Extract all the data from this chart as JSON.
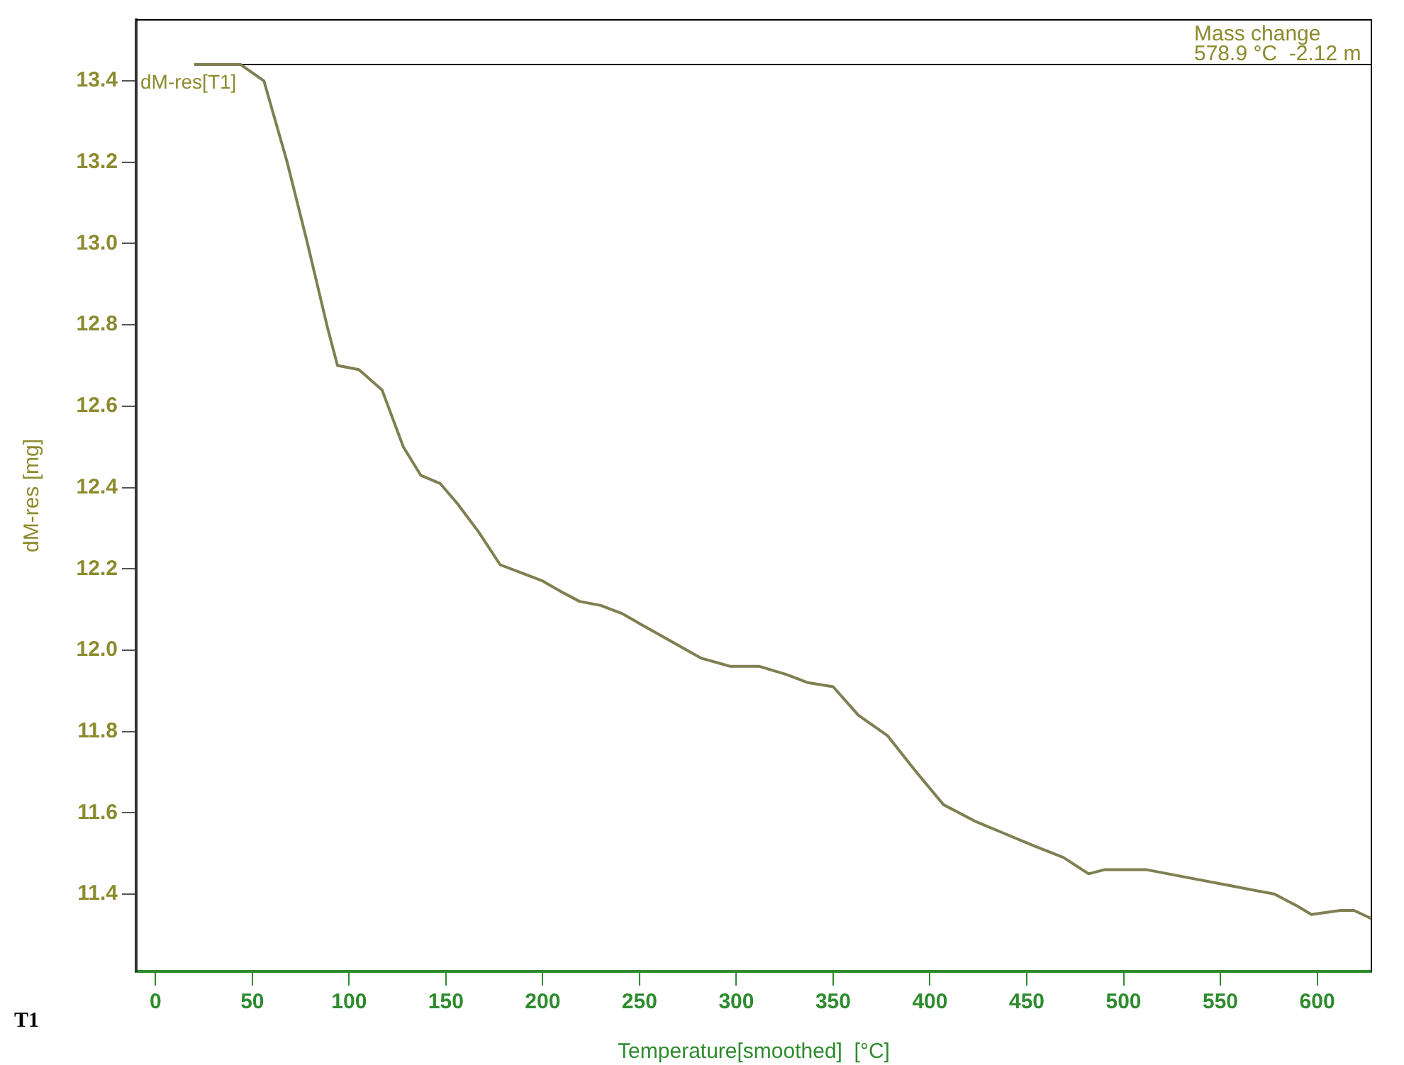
{
  "chart_data": {
    "type": "line",
    "xlabel": "Temperature[smoothed]  [°C]",
    "ylabel": "dM-res [mg]",
    "xlim": [
      -10,
      628
    ],
    "ylim": [
      11.21,
      13.55
    ],
    "xticks": [
      0,
      50,
      100,
      150,
      200,
      250,
      300,
      350,
      400,
      450,
      500,
      550,
      600
    ],
    "yticks": [
      {
        "value": 11.4,
        "label": "11.4"
      },
      {
        "value": 11.6,
        "label": "11.6"
      },
      {
        "value": 11.8,
        "label": "11.8"
      },
      {
        "value": 12.0,
        "label": "12.0"
      },
      {
        "value": 12.2,
        "label": "12.2"
      },
      {
        "value": 12.4,
        "label": "12.4"
      },
      {
        "value": 12.6,
        "label": "12.6"
      },
      {
        "value": 12.8,
        "label": "12.8"
      },
      {
        "value": 13.0,
        "label": "13.0"
      },
      {
        "value": 13.2,
        "label": "13.2"
      },
      {
        "value": 13.4,
        "label": "13.4"
      }
    ],
    "grid": false,
    "legend": false,
    "marker": "none",
    "line_style": "solid",
    "series": [
      {
        "name": "dM-res[T1]",
        "color": "#7f7f52",
        "x": [
          20,
          44,
          56,
          68,
          78,
          89,
          94,
          105,
          117,
          128,
          137,
          147,
          156,
          167,
          178,
          189,
          200,
          211,
          219,
          230,
          241,
          252,
          267,
          282,
          297,
          312,
          326,
          337,
          350,
          363,
          378,
          393,
          407,
          423,
          438,
          453,
          469,
          482,
          490,
          512,
          534,
          556,
          578,
          590,
          597,
          612,
          619,
          628
        ],
        "values": [
          13.44,
          13.44,
          13.4,
          13.2,
          13.01,
          12.79,
          12.7,
          12.69,
          12.64,
          12.5,
          12.43,
          12.41,
          12.36,
          12.29,
          12.21,
          12.19,
          12.17,
          12.14,
          12.12,
          12.11,
          12.09,
          12.06,
          12.02,
          11.98,
          11.96,
          11.96,
          11.94,
          11.92,
          11.91,
          11.84,
          11.79,
          11.7,
          11.62,
          11.58,
          11.55,
          11.52,
          11.49,
          11.45,
          11.46,
          11.46,
          11.44,
          11.42,
          11.4,
          11.37,
          11.35,
          11.36,
          11.36,
          11.34
        ]
      }
    ],
    "ref_lines": [
      {
        "axis": "y",
        "value": 13.44,
        "color": "#000000"
      },
      {
        "axis": "x",
        "value": 628,
        "color": "#000000"
      }
    ],
    "annotations": [
      "Mass change",
      "578.9 °C  -2.12 m",
      "T1"
    ]
  }
}
